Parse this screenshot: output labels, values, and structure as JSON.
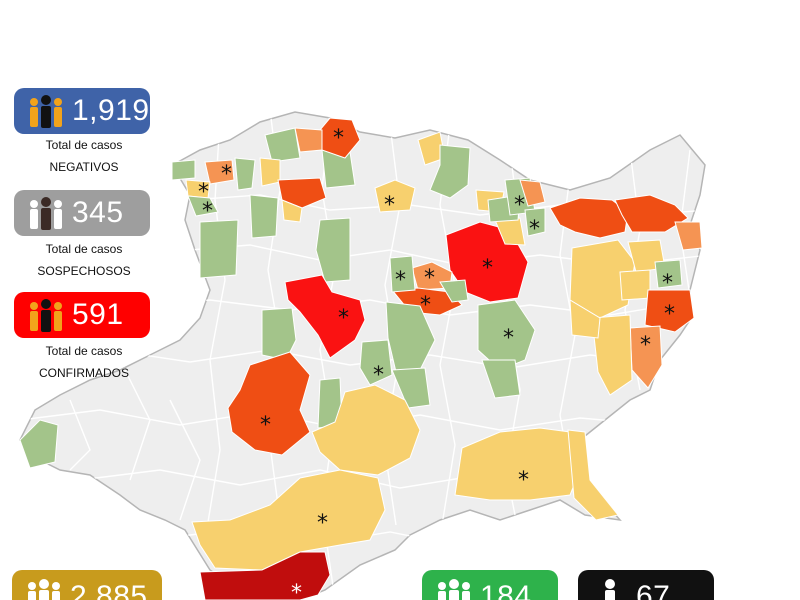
{
  "legend": {
    "negatives": {
      "value": "1,919",
      "line1": "Total de casos",
      "line2": "NEGATIVOS",
      "color": "#3f63a8"
    },
    "suspects": {
      "value": "345",
      "line1": "Total de casos",
      "line2": "SOSPECHOSOS",
      "color": "#9e9e9e"
    },
    "confirmed": {
      "value": "591",
      "line1": "Total de casos",
      "line2": "CONFIRMADOS",
      "color": "#ff0000"
    },
    "bottom_left": {
      "value": "2,885",
      "color": "#c89b1d"
    },
    "bottom_green": {
      "value": "184",
      "color": "#2eb24b"
    },
    "bottom_black": {
      "value": "67",
      "color": "#111111"
    }
  },
  "map": {
    "marker_symbol": "*",
    "colors": {
      "base": "#eeeeee",
      "border": "#ffffff",
      "outline": "#b5b5b5",
      "green": "#a3c48a",
      "yellow": "#f7d06e",
      "orange_light": "#f59453",
      "orange": "#ef4e14",
      "red": "#fa1212",
      "darkred": "#c00d0d"
    }
  }
}
